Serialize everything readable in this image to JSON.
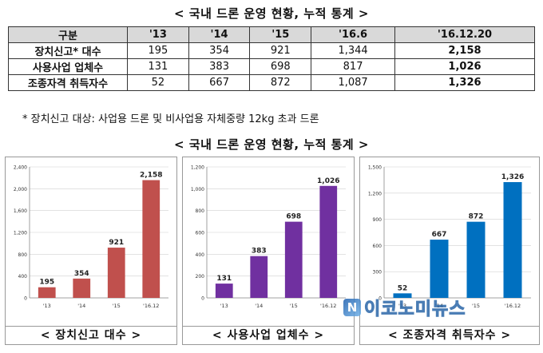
{
  "title_table": "< 국내 드론 운영 현황, 누적 통계 >",
  "title_charts": "< 국내 드론 운영 현황, 누적 통계 >",
  "table": {
    "headers": [
      "구분",
      "'13",
      "'14",
      "'15",
      "'16.6",
      "'16.12.20"
    ],
    "rows": [
      {
        "label": "장치신고* 대수",
        "values": [
          "195",
          "354",
          "921",
          "1,344",
          "2,158"
        ]
      },
      {
        "label": "사용사업 업체수",
        "values": [
          "131",
          "383",
          "698",
          "817",
          "1,026"
        ]
      },
      {
        "label": "조종자격 취득자수",
        "values": [
          "52",
          "667",
          "872",
          "1,087",
          "1,326"
        ]
      }
    ]
  },
  "note": "* 장치신고 대상: 사업용 드론 및 비사업용 자체중량 12kg 초과 드론",
  "watermark": {
    "logo": "N",
    "text": "이코노미뉴스"
  },
  "chart_data": [
    {
      "type": "bar",
      "caption": "< 장치신고 대수 >",
      "categories": [
        "'13",
        "'14",
        "'15",
        "'16.12"
      ],
      "values": [
        195,
        354,
        921,
        2158
      ],
      "value_labels": [
        "195",
        "354",
        "921",
        "2,158"
      ],
      "ylim": [
        0,
        2400
      ],
      "yticks": [
        0,
        400,
        800,
        1200,
        1600,
        2000,
        2400
      ],
      "ytick_labels": [
        "0",
        "400",
        "800",
        "1,200",
        "1,600",
        "2,000",
        "2,400"
      ],
      "color": "#c0504d"
    },
    {
      "type": "bar",
      "caption": "< 사용사업 업체수 >",
      "categories": [
        "'13",
        "'14",
        "'15",
        "'16.12"
      ],
      "values": [
        131,
        383,
        698,
        1026
      ],
      "value_labels": [
        "131",
        "383",
        "698",
        "1,026"
      ],
      "ylim": [
        0,
        1200
      ],
      "yticks": [
        0,
        200,
        400,
        600,
        800,
        1000,
        1200
      ],
      "ytick_labels": [
        "0",
        "200",
        "400",
        "600",
        "800",
        "1,000",
        "1,200"
      ],
      "color": "#7030a0"
    },
    {
      "type": "bar",
      "caption": "< 조종자격 취득자수 >",
      "categories": [
        "'13",
        "'14",
        "'15",
        "'16.12"
      ],
      "values": [
        52,
        667,
        872,
        1326
      ],
      "value_labels": [
        "52",
        "667",
        "872",
        "1,326"
      ],
      "ylim": [
        0,
        1500
      ],
      "yticks": [
        0,
        300,
        600,
        900,
        1200,
        1500
      ],
      "ytick_labels": [
        "0",
        "300",
        "600",
        "900",
        "1,200",
        "1,500"
      ],
      "color": "#0070c0"
    }
  ]
}
